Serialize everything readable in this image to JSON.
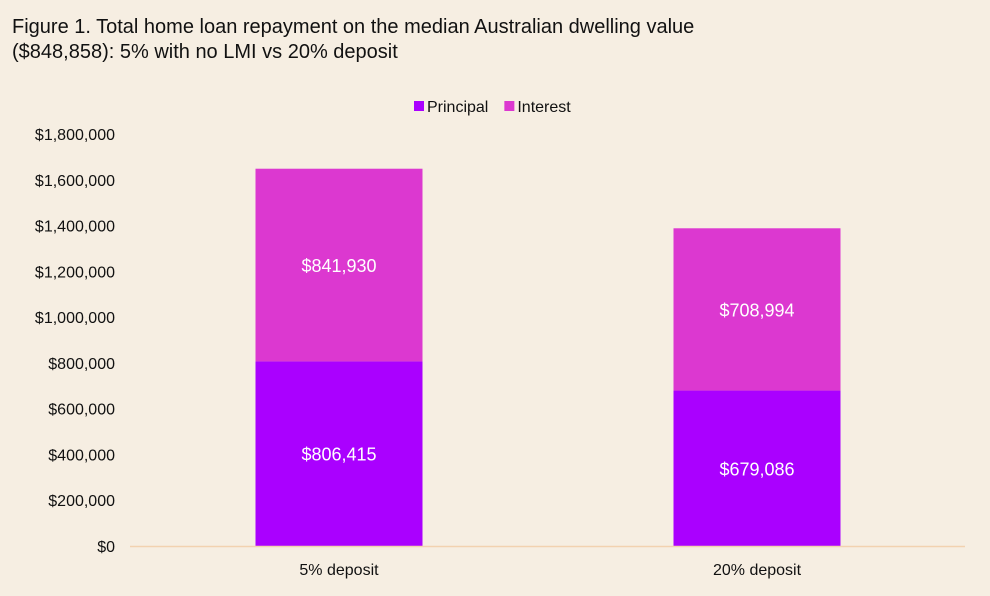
{
  "title_line1": "Figure 1. Total home loan repayment on the median Australian dwelling value",
  "title_line2": "($848,858): 5% with no LMI vs 20% deposit",
  "chart_data": {
    "type": "bar",
    "stacked": true,
    "title": "Figure 1. Total home loan repayment on the median Australian dwelling value ($848,858): 5% with no LMI vs 20% deposit",
    "categories": [
      "5% deposit",
      "20% deposit"
    ],
    "series": [
      {
        "name": "Principal",
        "values": [
          806415,
          679086
        ],
        "labels": [
          "$806,415",
          "$679,086"
        ],
        "color": "#aa00ff"
      },
      {
        "name": "Interest",
        "values": [
          841930,
          708994
        ],
        "labels": [
          "$841,930",
          "$708,994"
        ],
        "color": "#dc38d0"
      }
    ],
    "ylim": [
      0,
      1800000
    ],
    "yticks": [
      0,
      200000,
      400000,
      600000,
      800000,
      1000000,
      1200000,
      1400000,
      1600000,
      1800000
    ],
    "ytick_labels": [
      "$0",
      "$200,000",
      "$400,000",
      "$600,000",
      "$800,000",
      "$1,000,000",
      "$1,200,000",
      "$1,400,000",
      "$1,600,000",
      "$1,800,000"
    ],
    "xlabel": "",
    "ylabel": "",
    "grid": false,
    "legend": "top-center"
  }
}
